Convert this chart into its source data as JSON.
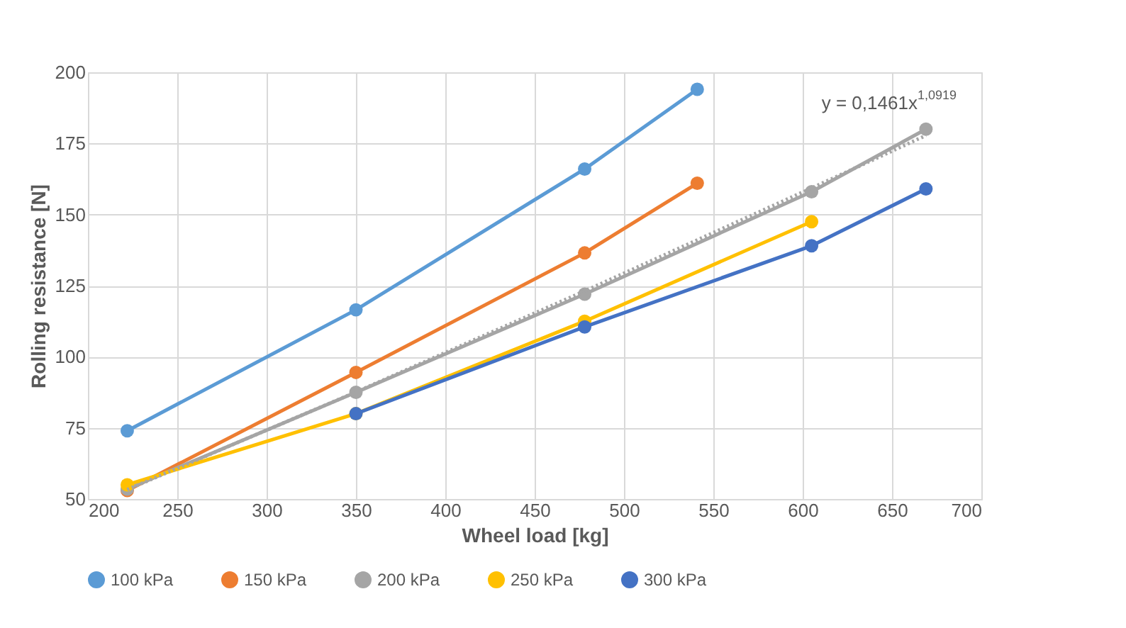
{
  "chart_data": {
    "type": "line",
    "xlabel": "Wheel load [kg]",
    "ylabel": "Rolling resistance [N]",
    "xlim": [
      200,
      700
    ],
    "xticks": [
      200,
      250,
      300,
      350,
      400,
      450,
      500,
      550,
      600,
      650,
      700
    ],
    "ylim": [
      50,
      200
    ],
    "yticks": [
      50,
      75,
      100,
      125,
      150,
      175,
      200
    ],
    "grid": true,
    "legend": "bottom",
    "marker": "circle",
    "line_style": "solid",
    "series": [
      {
        "name": "100 kPa",
        "color": "#5b9bd5",
        "x": [
          222,
          350,
          478,
          541
        ],
        "values": [
          74,
          116.5,
          166,
          194
        ]
      },
      {
        "name": "150 kPa",
        "color": "#ed7d31",
        "x": [
          222,
          350,
          478,
          541
        ],
        "values": [
          53,
          94.5,
          136.5,
          161
        ]
      },
      {
        "name": "200 kPa",
        "color": "#a5a5a5",
        "x": [
          222,
          350,
          478,
          605,
          669
        ],
        "values": [
          53.5,
          87.5,
          122,
          158,
          180
        ]
      },
      {
        "name": "250 kPa",
        "color": "#ffc000",
        "x": [
          222,
          350,
          478,
          605
        ],
        "values": [
          55,
          80,
          112.5,
          147.5
        ]
      },
      {
        "name": "300 kPa",
        "color": "#4472c4",
        "x": [
          350,
          478,
          605,
          669
        ],
        "values": [
          80,
          110.5,
          139,
          159
        ]
      },
      {
        "type": "line",
        "color": "#a5a5a5",
        "marker": "none",
        "line_style": "dotted",
        "x": [
          222,
          350,
          478,
          605,
          669
        ],
        "values": [
          53.3,
          87.6,
          123.1,
          159.3,
          177.8
        ]
      }
    ],
    "annotations": [
      {
        "text": "y = 0,1461x$^{1,0919}$",
        "x": 669,
        "y": 180
      }
    ]
  }
}
